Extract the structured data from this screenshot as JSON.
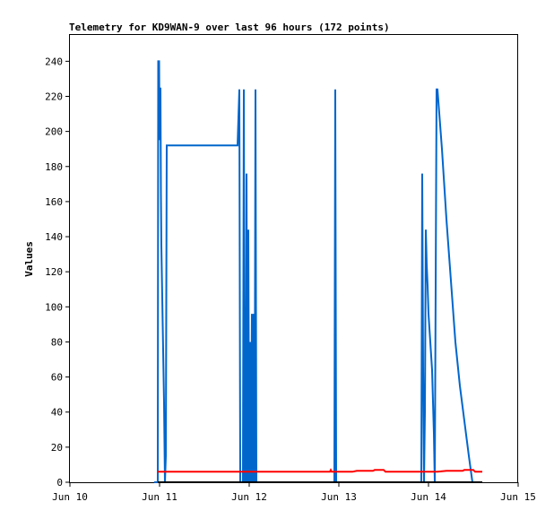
{
  "chart_data": {
    "type": "line",
    "title": "Telemetry for KD9WAN-9 over last 96 hours (172 points)",
    "ylabel": "Values",
    "xlabel": "",
    "x_axis": {
      "ticks": [
        "Jun 10",
        "Jun 11",
        "Jun 12",
        "Jun 13",
        "Jun 14",
        "Jun 15"
      ],
      "range_days": [
        10,
        15
      ]
    },
    "y_axis": {
      "ticks": [
        0,
        20,
        40,
        60,
        80,
        100,
        120,
        140,
        160,
        180,
        200,
        220,
        240
      ],
      "ylim": [
        0,
        255
      ]
    },
    "grid": false,
    "legend": "none",
    "series": [
      {
        "color": "#0066cc",
        "points": [
          [
            10.94,
            0
          ],
          [
            10.98,
            0
          ],
          [
            10.985,
            240
          ],
          [
            10.995,
            240
          ],
          [
            11.0,
            195
          ],
          [
            11.01,
            225
          ],
          [
            11.015,
            165
          ],
          [
            11.02,
            135
          ],
          [
            11.03,
            105
          ],
          [
            11.04,
            75
          ],
          [
            11.05,
            45
          ],
          [
            11.06,
            0
          ],
          [
            11.07,
            15
          ],
          [
            11.08,
            192
          ],
          [
            11.87,
            192
          ],
          [
            11.88,
            208
          ],
          [
            11.89,
            224
          ],
          [
            11.9,
            0
          ],
          [
            11.93,
            0
          ],
          [
            11.94,
            224
          ],
          [
            11.95,
            0
          ],
          [
            11.96,
            0
          ],
          [
            11.97,
            176
          ],
          [
            11.98,
            0
          ],
          [
            11.99,
            144
          ],
          [
            12.0,
            0
          ],
          [
            12.01,
            80
          ],
          [
            12.02,
            0
          ],
          [
            12.03,
            96
          ],
          [
            12.04,
            0
          ],
          [
            12.05,
            96
          ],
          [
            12.06,
            0
          ],
          [
            12.07,
            224
          ],
          [
            12.08,
            0
          ],
          [
            12.95,
            0
          ],
          [
            12.96,
            224
          ],
          [
            12.97,
            0
          ],
          [
            13.92,
            0
          ],
          [
            13.93,
            176
          ],
          [
            13.94,
            64
          ],
          [
            13.95,
            0
          ],
          [
            13.96,
            40
          ],
          [
            13.97,
            144
          ],
          [
            13.98,
            124
          ],
          [
            13.99,
            112
          ],
          [
            14.0,
            96
          ],
          [
            14.02,
            80
          ],
          [
            14.04,
            64
          ],
          [
            14.06,
            28
          ],
          [
            14.07,
            0
          ],
          [
            14.08,
            112
          ],
          [
            14.09,
            224
          ],
          [
            14.1,
            224
          ],
          [
            14.15,
            190
          ],
          [
            14.2,
            150
          ],
          [
            14.25,
            115
          ],
          [
            14.3,
            80
          ],
          [
            14.35,
            55
          ],
          [
            14.4,
            35
          ],
          [
            14.45,
            15
          ],
          [
            14.49,
            0
          ],
          [
            14.6,
            0
          ]
        ]
      },
      {
        "color": "#ff0000",
        "points": [
          [
            10.98,
            6
          ],
          [
            12.9,
            6
          ],
          [
            12.91,
            7
          ],
          [
            12.92,
            6
          ],
          [
            13.15,
            6
          ],
          [
            13.2,
            6.5
          ],
          [
            13.38,
            6.5
          ],
          [
            13.4,
            7
          ],
          [
            13.5,
            7
          ],
          [
            13.52,
            6
          ],
          [
            14.1,
            6
          ],
          [
            14.2,
            6.5
          ],
          [
            14.38,
            6.5
          ],
          [
            14.4,
            7
          ],
          [
            14.5,
            7
          ],
          [
            14.52,
            6
          ],
          [
            14.6,
            6
          ]
        ]
      },
      {
        "color": "#000000",
        "points": [
          [
            10.98,
            0
          ],
          [
            14.6,
            0
          ]
        ]
      }
    ]
  }
}
